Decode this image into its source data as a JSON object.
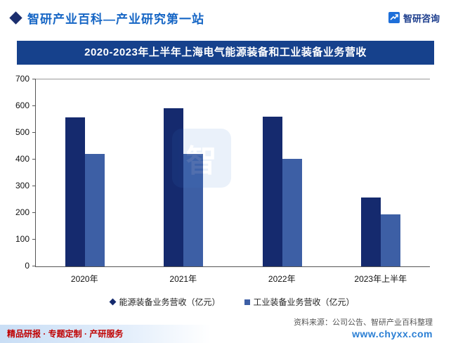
{
  "header": {
    "title": "智研产业百科—产业研究第一站",
    "logo_text": "智研咨询"
  },
  "chart": {
    "title": "2020-2023年上半年上海电气能源装备和工业装备业务营收"
  },
  "chart_data": {
    "type": "bar",
    "title": "2020-2023年上半年上海电气能源装备和工业装备业务营收",
    "categories": [
      "2020年",
      "2021年",
      "2022年",
      "2023年上半年"
    ],
    "series": [
      {
        "name": "能源装备业务营收（亿元）",
        "color": "#152a6e",
        "values": [
          558,
          593,
          561,
          257
        ]
      },
      {
        "name": "工业装备业务营收（亿元）",
        "color": "#3d5fa5",
        "values": [
          422,
          422,
          403,
          196
        ]
      }
    ],
    "ylim": [
      0,
      700
    ],
    "yticks": [
      0,
      100,
      200,
      300,
      400,
      500,
      600,
      700
    ],
    "legend_position": "bottom",
    "grid": false
  },
  "footer": {
    "services": "精品研报 · 专题定制 · 产研服务",
    "source_label": "资料来源：",
    "source_text": "公司公告、智研产业百科整理",
    "website": "www.chyxx.com"
  },
  "colors": {
    "accent": "#16418c",
    "header_text": "#1666c5",
    "series_dark": "#152a6e",
    "series_light": "#3d5fa5",
    "footer_red": "#c00000",
    "website_blue": "#2b7fd4"
  }
}
